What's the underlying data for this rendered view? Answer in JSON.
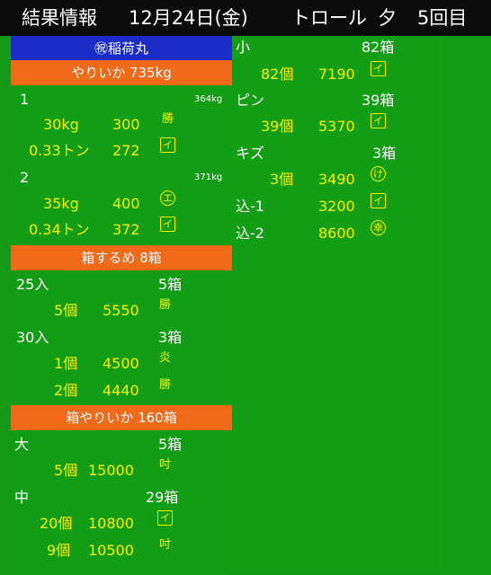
{
  "title": {
    "label": "結果情報",
    "date": "12月24日(金)",
    "method": "トロール",
    "session": "夕",
    "times": "5回目"
  },
  "vessel": "㊗稲荷丸",
  "col1": {
    "sections": [
      {
        "header": "やりいか 735kg",
        "groups": [
          {
            "label": "1",
            "sub": "364kg",
            "rows": [
              {
                "qty": "30kg",
                "price": "300",
                "mark": "勝"
              },
              {
                "qty": "0.33トン",
                "price": "272",
                "mark": "イ"
              }
            ]
          },
          {
            "label": "2",
            "sub": "371kg",
            "rows": [
              {
                "qty": "35kg",
                "price": "400",
                "mark": "エ"
              },
              {
                "qty": "0.34トン",
                "price": "372",
                "mark": "イ"
              }
            ]
          }
        ]
      },
      {
        "header": "箱するめ 8箱",
        "groups": [
          {
            "label": "25入",
            "sub": "5箱",
            "rows": [
              {
                "qty": "5個",
                "price": "5550",
                "mark": "勝"
              }
            ]
          },
          {
            "label": "30入",
            "sub": "3箱",
            "rows": [
              {
                "qty": "1個",
                "price": "4500",
                "mark": "炎"
              },
              {
                "qty": "2個",
                "price": "4440",
                "mark": "勝"
              }
            ]
          }
        ]
      },
      {
        "header": "箱やりいか 160箱",
        "groups": [
          {
            "label": "大",
            "sub": "5箱",
            "rows": [
              {
                "qty": "5個",
                "price": "15000",
                "mark": "吋"
              }
            ]
          },
          {
            "label": "中",
            "sub": "29箱",
            "rows": [
              {
                "qty": "20個",
                "price": "10800",
                "mark": "イ"
              },
              {
                "qty": "9個",
                "price": "10500",
                "mark": "吋"
              }
            ]
          }
        ]
      }
    ]
  },
  "col2": {
    "groups": [
      {
        "label": "小",
        "sub": "82箱",
        "rows": [
          {
            "qty": "82個",
            "price": "7190",
            "mark": "イ"
          }
        ]
      },
      {
        "label": "ピン",
        "sub": "39箱",
        "rows": [
          {
            "qty": "39個",
            "price": "5370",
            "mark": "イ"
          }
        ]
      },
      {
        "label": "キズ",
        "sub": "3箱",
        "rows": [
          {
            "qty": "3個",
            "price": "3490",
            "mark": "け"
          }
        ]
      },
      {
        "label": "込-1",
        "sub": "",
        "inline": true,
        "rows": [
          {
            "qty": "",
            "price": "3200",
            "mark": "イ"
          }
        ]
      },
      {
        "label": "込-2",
        "sub": "",
        "inline": true,
        "rows": [
          {
            "qty": "",
            "price": "8600",
            "mark": "幸"
          }
        ]
      }
    ]
  }
}
